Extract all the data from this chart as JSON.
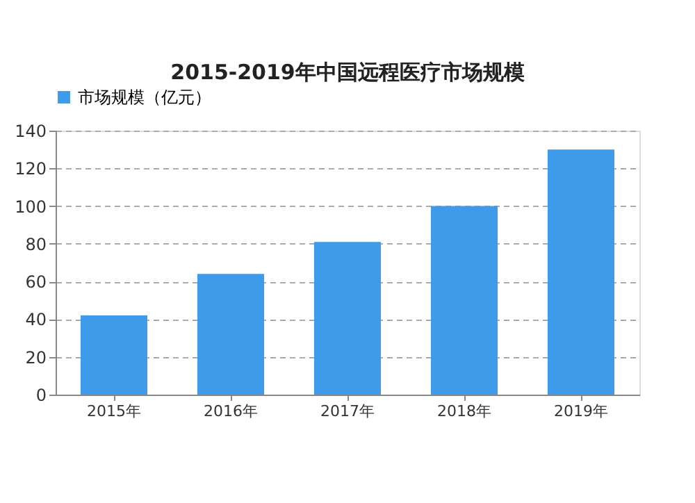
{
  "chart_data": {
    "type": "bar",
    "title": "2015-2019年中国远程医疗市场规模",
    "categories": [
      "2015年",
      "2016年",
      "2017年",
      "2018年",
      "2019年"
    ],
    "series": [
      {
        "name": "市场规模（亿元）",
        "color": "#3d9be9",
        "values": [
          42,
          64,
          81,
          100,
          130
        ]
      }
    ],
    "ylim": [
      0,
      140
    ],
    "yticks": [
      0,
      20,
      40,
      60,
      80,
      100,
      120,
      140
    ],
    "grid": "y",
    "legend": "top"
  }
}
